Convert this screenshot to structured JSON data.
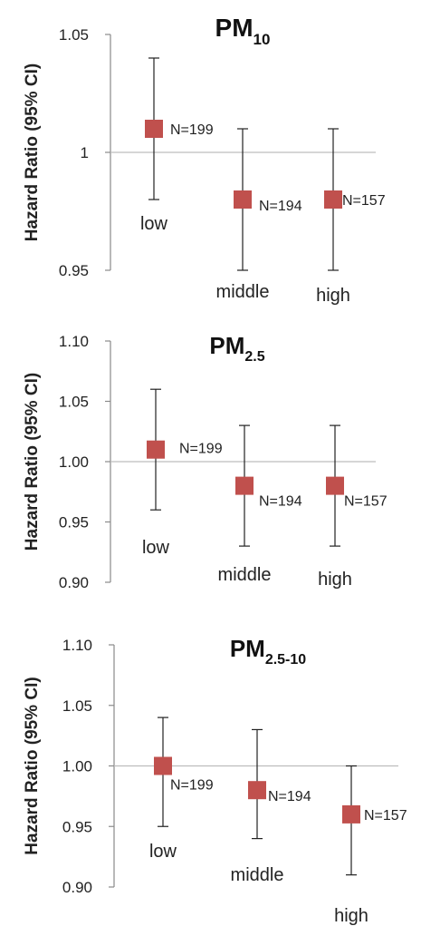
{
  "style": {
    "marker_color": "#c0504d",
    "axis_color": "#8a8a8a",
    "baseline_color": "#bdbdbd",
    "error_color": "#222222",
    "text_color": "#222222"
  },
  "chart_data": [
    {
      "type": "scatter",
      "title": "PM",
      "title_sub": "10",
      "ylabel": "Hazard Ratio (95% CI)",
      "ylim": [
        0.95,
        1.05
      ],
      "yticks": [
        "0.95",
        "1",
        "1.05"
      ],
      "reference_line": 1,
      "categories": [
        "low",
        "middle",
        "high"
      ],
      "values": [
        1.01,
        0.98,
        0.98
      ],
      "ci_lower": [
        0.98,
        0.95,
        0.95
      ],
      "ci_upper": [
        1.04,
        1.01,
        1.01
      ],
      "n_labels": [
        "N=199",
        "N=194",
        "N=157"
      ]
    },
    {
      "type": "scatter",
      "title": "PM",
      "title_sub": "2.5",
      "ylabel": "Hazard Ratio (95% CI)",
      "ylim": [
        0.9,
        1.1
      ],
      "yticks": [
        "0.90",
        "0.95",
        "1.00",
        "1.05",
        "1.10"
      ],
      "reference_line": 1,
      "categories": [
        "low",
        "middle",
        "high"
      ],
      "values": [
        1.01,
        0.98,
        0.98
      ],
      "ci_lower": [
        0.96,
        0.93,
        0.93
      ],
      "ci_upper": [
        1.06,
        1.03,
        1.03
      ],
      "n_labels": [
        "N=199",
        "N=194",
        "N=157"
      ]
    },
    {
      "type": "scatter",
      "title": "PM",
      "title_sub": "2.5-10",
      "ylabel": "Hazard Ratio (95% CI)",
      "ylim": [
        0.9,
        1.1
      ],
      "yticks": [
        "0.90",
        "0.95",
        "1.00",
        "1.05",
        "1.10"
      ],
      "reference_line": 1,
      "categories": [
        "low",
        "middle",
        "high"
      ],
      "values": [
        1.0,
        0.98,
        0.96
      ],
      "ci_lower": [
        0.95,
        0.94,
        0.91
      ],
      "ci_upper": [
        1.04,
        1.03,
        1.0
      ],
      "n_labels": [
        "N=199",
        "N=194",
        "N=157"
      ]
    }
  ]
}
